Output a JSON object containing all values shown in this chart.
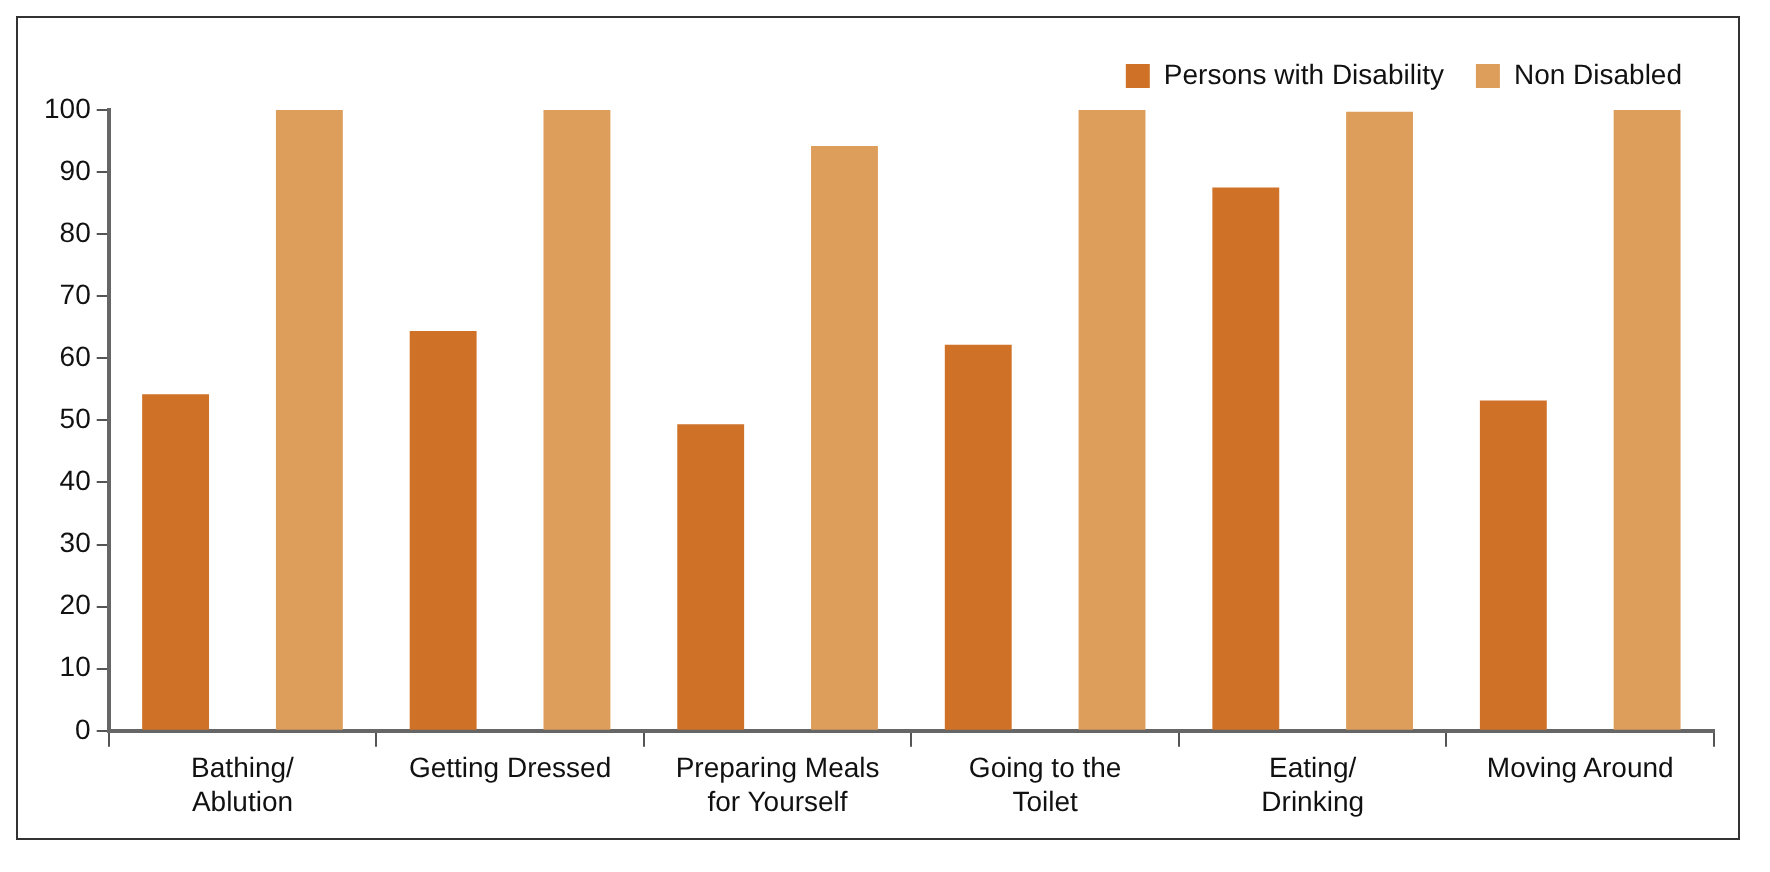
{
  "chart_data": {
    "type": "bar",
    "categories": [
      "Bathing/\nAblution",
      "Getting Dressed",
      "Preparing Meals\nfor Yourself",
      "Going to the\nToilet",
      "Eating/\nDrinking",
      "Moving Around"
    ],
    "series": [
      {
        "name": "Persons with Disability",
        "color": "#cf7228",
        "values": [
          54.2,
          64.4,
          49.4,
          62.2,
          87.5,
          53.2
        ]
      },
      {
        "name": "Non Disabled",
        "color": "#dd9e5b",
        "values": [
          100,
          100,
          94.2,
          100,
          99.7,
          100
        ]
      }
    ],
    "ylim": [
      0,
      100
    ],
    "yticks": [
      0,
      10,
      20,
      30,
      40,
      50,
      60,
      70,
      80,
      90,
      100
    ],
    "grid": false,
    "legend": "top right"
  }
}
